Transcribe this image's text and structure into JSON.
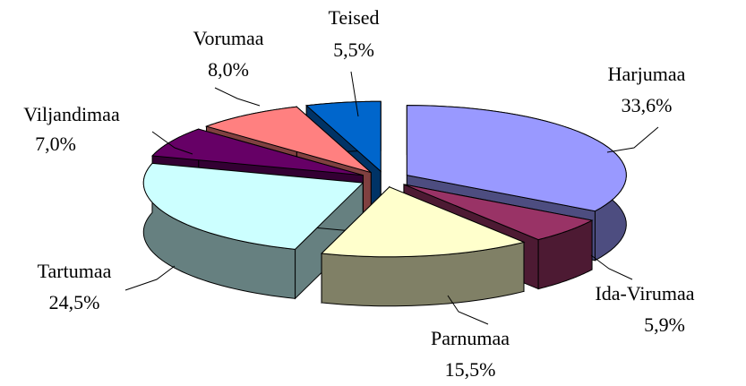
{
  "chart_data": {
    "type": "pie3d",
    "categories": [
      "Harjumaa",
      "Ida-Virumaa",
      "Parnumaa",
      "Tartumaa",
      "Viljandimaa",
      "Vorumaa",
      "Teised"
    ],
    "values": [
      33.6,
      5.9,
      15.5,
      24.5,
      7.0,
      8.0,
      5.5
    ],
    "value_labels": [
      "33,6%",
      "5,9%",
      "15,5%",
      "24,5%",
      "7,0%",
      "8,0%",
      "5,5%"
    ],
    "colors": [
      "#9999ff",
      "#993366",
      "#ffffcc",
      "#ccffff",
      "#660066",
      "#ff8080",
      "#0066cc"
    ]
  }
}
